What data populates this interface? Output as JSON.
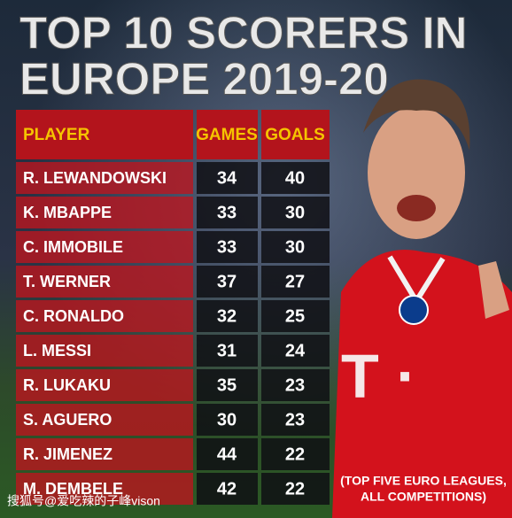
{
  "header": {
    "title_line1": "TOP 10 SCORERS IN",
    "title_line2": "EUROPE 2019-20"
  },
  "table": {
    "columns": [
      "PLAYER",
      "GAMES",
      "GOALS"
    ],
    "rows": [
      [
        "R. LEWANDOWSKI",
        34,
        40
      ],
      [
        "K. MBAPPE",
        33,
        30
      ],
      [
        "C. IMMOBILE",
        33,
        30
      ],
      [
        "T. WERNER",
        37,
        27
      ],
      [
        "C. RONALDO",
        32,
        25
      ],
      [
        "L. MESSI",
        31,
        24
      ],
      [
        "R. LUKAKU",
        35,
        23
      ],
      [
        "S. AGUERO",
        30,
        23
      ],
      [
        "R. JIMENEZ",
        44,
        22
      ],
      [
        "M. DEMBELE",
        42,
        22
      ]
    ]
  },
  "note": {
    "line1": "(TOP FIVE EURO LEAGUES,",
    "line2": "ALL COMPETITIONS)"
  },
  "watermark": "搜狐号@爱吃辣的子峰vison"
}
